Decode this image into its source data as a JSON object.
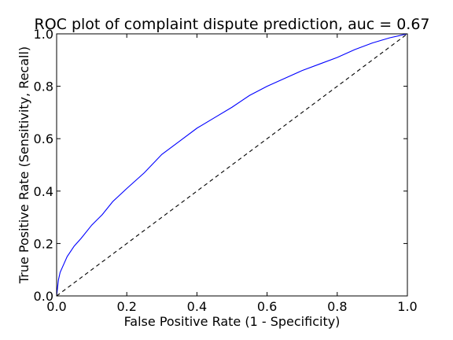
{
  "chart_data": {
    "type": "line",
    "title": "ROC plot of  complaint dispute prediction, auc = 0.67",
    "xlabel": "False Positive Rate (1 - Specificity)",
    "ylabel": "True Positive Rate (Sensitivity, Recall)",
    "xlim": [
      0.0,
      1.0
    ],
    "ylim": [
      0.0,
      1.0
    ],
    "x_ticks": [
      "0.0",
      "0.2",
      "0.4",
      "0.6",
      "0.8",
      "1.0"
    ],
    "y_ticks": [
      "0.0",
      "0.2",
      "0.4",
      "0.6",
      "0.8",
      "1.0"
    ],
    "grid": false,
    "legend": "none",
    "series": [
      {
        "color": "#0000ff",
        "style": "solid",
        "x": [
          0.0,
          0.005,
          0.01,
          0.02,
          0.03,
          0.05,
          0.07,
          0.1,
          0.13,
          0.16,
          0.2,
          0.25,
          0.3,
          0.35,
          0.4,
          0.45,
          0.5,
          0.55,
          0.6,
          0.65,
          0.7,
          0.75,
          0.8,
          0.85,
          0.9,
          0.95,
          1.0
        ],
        "y": [
          0.0,
          0.06,
          0.09,
          0.12,
          0.15,
          0.19,
          0.22,
          0.27,
          0.31,
          0.36,
          0.41,
          0.47,
          0.54,
          0.59,
          0.64,
          0.68,
          0.72,
          0.765,
          0.8,
          0.83,
          0.86,
          0.885,
          0.91,
          0.94,
          0.965,
          0.985,
          1.0
        ]
      },
      {
        "color": "#000000",
        "style": "dashed",
        "x": [
          0.0,
          1.0
        ],
        "y": [
          0.0,
          1.0
        ]
      }
    ]
  }
}
